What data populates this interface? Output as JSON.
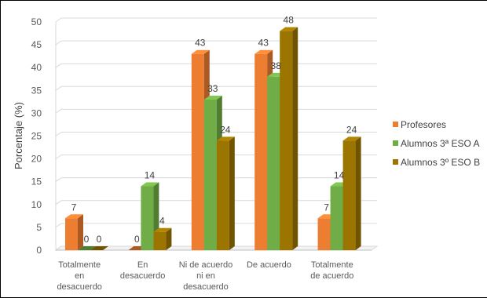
{
  "chart_data": {
    "type": "bar",
    "title": "",
    "xlabel": "",
    "ylabel": "Porcentaje (%)",
    "ylim": [
      0,
      50
    ],
    "yticks": [
      0,
      5,
      10,
      15,
      20,
      25,
      30,
      35,
      40,
      45,
      50
    ],
    "grid": true,
    "legend_position": "right",
    "categories": [
      [
        "Totalmente",
        "en",
        "desacuerdo"
      ],
      [
        "En",
        "desacuerdo"
      ],
      [
        "Ni de acuerdo",
        "ni en",
        "desacuerdo"
      ],
      [
        "De acuerdo"
      ],
      [
        "Totalmente",
        "de acuerdo"
      ]
    ],
    "series": [
      {
        "name": "Profesores",
        "color": "#ED7D31",
        "values": [
          7,
          0,
          43,
          43,
          7
        ]
      },
      {
        "name": "Alumnos 3ª ESO A",
        "color": "#70AD47",
        "values": [
          0,
          14,
          33,
          38,
          14
        ]
      },
      {
        "name": "Alumnos 3º ESO B",
        "color": "#9C7400",
        "values": [
          0,
          4,
          24,
          48,
          24
        ]
      }
    ]
  }
}
